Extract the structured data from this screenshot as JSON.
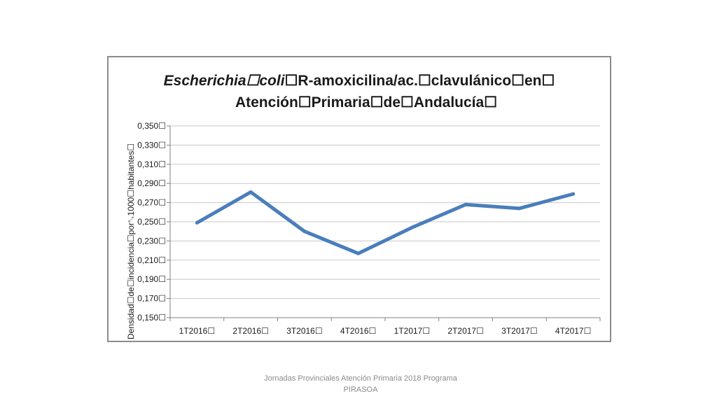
{
  "chart_data": {
    "type": "line",
    "title_line1_italic": "Escherichia☐coli",
    "title_line1_rest": "☐R-amoxicilina/ac.☐clavulánico☐en☐",
    "title_line2": "Atención☐Primaria☐de☐Andalucía☐",
    "ylabel": "Densidad☐de☐incidencia☐por␐1000☐habitantes☐",
    "xlabel": "",
    "categories": [
      "1T2016☐",
      "2T2016☐",
      "3T2016☐",
      "4T2016☐",
      "1T2017☐",
      "2T2017☐",
      "3T2017☐",
      "4T2017☐"
    ],
    "series": [
      {
        "values": [
          0.249,
          0.281,
          0.24,
          0.217,
          0.244,
          0.268,
          0.264,
          0.279
        ]
      }
    ],
    "ylim": [
      0.15,
      0.35
    ],
    "yticks": [
      "0,150☐",
      "0,170☐",
      "0,190☐",
      "0,210☐",
      "0,230☐",
      "0,250☐",
      "0,270☐",
      "0,290☐",
      "0,310☐",
      "0,330☐",
      "0,350☐"
    ],
    "grid": true,
    "legend": "none",
    "line_color": "#4a7ebb"
  },
  "footer": {
    "line1": "Jornadas Provinciales Atención Primaria 2018  Programa",
    "line2": "PIRASOA"
  }
}
